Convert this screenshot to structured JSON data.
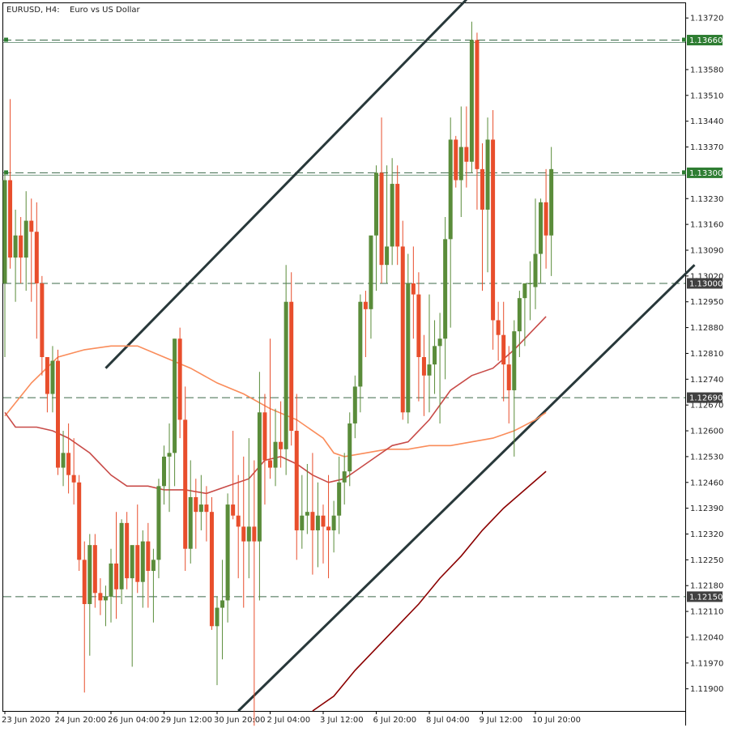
{
  "header": {
    "symbol_timeframe": "EURUSD, H4:",
    "description": "Euro vs US Dollar"
  },
  "chart_data": {
    "type": "candlestick",
    "symbol": "EURUSD",
    "timeframe": "H4",
    "title": "Euro vs US Dollar",
    "ylim": [
      1.1184,
      1.1376
    ],
    "y_ticks": [
      1.119,
      1.1197,
      1.1204,
      1.1211,
      1.1218,
      1.1225,
      1.1232,
      1.1239,
      1.1246,
      1.1253,
      1.126,
      1.1267,
      1.1274,
      1.1281,
      1.1288,
      1.1295,
      1.1302,
      1.1309,
      1.1316,
      1.1323,
      1.1337,
      1.1344,
      1.1351,
      1.1358,
      1.1372
    ],
    "y_tick_labels": [
      "1.11900",
      "1.11970",
      "1.12040",
      "1.12110",
      "1.12180",
      "1.12250",
      "1.12320",
      "1.12390",
      "1.12460",
      "1.12530",
      "1.12600",
      "1.12670",
      "1.12740",
      "1.12810",
      "1.12880",
      "1.12950",
      "1.13020",
      "1.13090",
      "1.13160",
      "1.13230",
      "1.13370",
      "1.13440",
      "1.13510",
      "1.13580",
      "1.13720"
    ],
    "x_tick_labels": [
      {
        "bar": 0,
        "label": "23 Jun 2020"
      },
      {
        "bar": 10,
        "label": "24 Jun 20:00"
      },
      {
        "bar": 20,
        "label": "26 Jun 04:00"
      },
      {
        "bar": 30,
        "label": "29 Jun 12:00"
      },
      {
        "bar": 40,
        "label": "30 Jun 20:00"
      },
      {
        "bar": 50,
        "label": "2 Jul 04:00"
      },
      {
        "bar": 60,
        "label": "3 Jul 12:00"
      },
      {
        "bar": 70,
        "label": "6 Jul 20:00"
      },
      {
        "bar": 80,
        "label": "8 Jul 04:00"
      },
      {
        "bar": 90,
        "label": "9 Jul 12:00"
      },
      {
        "bar": 100,
        "label": "10 Jul 20:00"
      }
    ],
    "levels": [
      {
        "value": 1.1366,
        "label": "1.13660",
        "color": "#2e7d32"
      },
      {
        "value": 1.133,
        "label": "1.13300",
        "color": "#2e7d32"
      },
      {
        "value": 1.13,
        "label": "1.13000",
        "color": "#404040"
      },
      {
        "value": 1.1269,
        "label": "1.12690",
        "color": "#404040"
      },
      {
        "value": 1.1215,
        "label": "1.12150",
        "color": "#404040"
      }
    ],
    "channel_lines": [
      {
        "x1": 19,
        "y1": 1.1277,
        "x2": 87,
        "y2": 1.1377
      },
      {
        "x1": 44,
        "y1": 1.1184,
        "x2": 130,
        "y2": 1.1305
      }
    ],
    "candles": [
      [
        1.13,
        1.133,
        1.128,
        1.1328
      ],
      [
        1.1328,
        1.135,
        1.1304,
        1.1307
      ],
      [
        1.1307,
        1.132,
        1.1295,
        1.1313
      ],
      [
        1.1313,
        1.1318,
        1.13,
        1.1307
      ],
      [
        1.1307,
        1.1325,
        1.1298,
        1.1317
      ],
      [
        1.1317,
        1.1323,
        1.1295,
        1.1314
      ],
      [
        1.1314,
        1.1322,
        1.1285,
        1.13
      ],
      [
        1.13,
        1.1302,
        1.1275,
        1.128
      ],
      [
        1.128,
        1.128,
        1.1265,
        1.127
      ],
      [
        1.127,
        1.1283,
        1.1265,
        1.1279
      ],
      [
        1.1279,
        1.1282,
        1.1248,
        1.125
      ],
      [
        1.125,
        1.126,
        1.1245,
        1.1254
      ],
      [
        1.1254,
        1.1262,
        1.1243,
        1.1248
      ],
      [
        1.1248,
        1.1258,
        1.124,
        1.1246
      ],
      [
        1.1246,
        1.1248,
        1.1222,
        1.1225
      ],
      [
        1.1225,
        1.123,
        1.1189,
        1.1213
      ],
      [
        1.1213,
        1.1232,
        1.1199,
        1.1229
      ],
      [
        1.1229,
        1.1232,
        1.1212,
        1.1216
      ],
      [
        1.1216,
        1.122,
        1.121,
        1.1214
      ],
      [
        1.1214,
        1.1218,
        1.1207,
        1.1215
      ],
      [
        1.1215,
        1.1228,
        1.1208,
        1.1224
      ],
      [
        1.1224,
        1.1238,
        1.1209,
        1.1217
      ],
      [
        1.1217,
        1.1236,
        1.1213,
        1.1235
      ],
      [
        1.1235,
        1.1238,
        1.1217,
        1.122
      ],
      [
        1.122,
        1.1228,
        1.1196,
        1.1229
      ],
      [
        1.1229,
        1.124,
        1.1216,
        1.1219
      ],
      [
        1.1219,
        1.1233,
        1.1212,
        1.123
      ],
      [
        1.123,
        1.1235,
        1.1212,
        1.1222
      ],
      [
        1.1222,
        1.1228,
        1.1208,
        1.1225
      ],
      [
        1.1225,
        1.1247,
        1.122,
        1.1245
      ],
      [
        1.1245,
        1.1256,
        1.124,
        1.1253
      ],
      [
        1.1253,
        1.1262,
        1.1238,
        1.1254
      ],
      [
        1.1254,
        1.1285,
        1.1245,
        1.1285
      ],
      [
        1.1285,
        1.1288,
        1.1258,
        1.1263
      ],
      [
        1.1263,
        1.1272,
        1.1222,
        1.1228
      ],
      [
        1.1228,
        1.1252,
        1.1224,
        1.1242
      ],
      [
        1.1242,
        1.1247,
        1.1228,
        1.1238
      ],
      [
        1.1238,
        1.1248,
        1.1233,
        1.124
      ],
      [
        1.124,
        1.1245,
        1.123,
        1.1238
      ],
      [
        1.1238,
        1.1242,
        1.1206,
        1.1207
      ],
      [
        1.1207,
        1.1215,
        1.1191,
        1.1212
      ],
      [
        1.1212,
        1.1225,
        1.1198,
        1.1214
      ],
      [
        1.1214,
        1.1243,
        1.1208,
        1.124
      ],
      [
        1.124,
        1.126,
        1.1236,
        1.1237
      ],
      [
        1.1237,
        1.1248,
        1.122,
        1.1234
      ],
      [
        1.1234,
        1.1253,
        1.1212,
        1.123
      ],
      [
        1.123,
        1.1258,
        1.122,
        1.1234
      ],
      [
        1.1234,
        1.1252,
        1.118,
        1.123
      ],
      [
        1.123,
        1.1276,
        1.1214,
        1.1265
      ],
      [
        1.1265,
        1.127,
        1.124,
        1.1252
      ],
      [
        1.1252,
        1.1285,
        1.1247,
        1.125
      ],
      [
        1.125,
        1.1266,
        1.1245,
        1.1257
      ],
      [
        1.1257,
        1.1268,
        1.125,
        1.1255
      ],
      [
        1.1255,
        1.1305,
        1.1248,
        1.1295
      ],
      [
        1.1295,
        1.1303,
        1.1256,
        1.126
      ],
      [
        1.126,
        1.127,
        1.1225,
        1.1233
      ],
      [
        1.1233,
        1.1248,
        1.1228,
        1.1237
      ],
      [
        1.1237,
        1.1251,
        1.1232,
        1.1238
      ],
      [
        1.1238,
        1.1254,
        1.1221,
        1.1233
      ],
      [
        1.1233,
        1.1246,
        1.1223,
        1.1237
      ],
      [
        1.1237,
        1.124,
        1.1224,
        1.1234
      ],
      [
        1.1234,
        1.1248,
        1.122,
        1.1233
      ],
      [
        1.1233,
        1.1241,
        1.1227,
        1.1237
      ],
      [
        1.1237,
        1.1253,
        1.1232,
        1.1246
      ],
      [
        1.1246,
        1.1254,
        1.124,
        1.1249
      ],
      [
        1.1249,
        1.1265,
        1.1245,
        1.1262
      ],
      [
        1.1262,
        1.1275,
        1.1258,
        1.1272
      ],
      [
        1.1272,
        1.1297,
        1.1265,
        1.1295
      ],
      [
        1.1295,
        1.1298,
        1.128,
        1.1293
      ],
      [
        1.1293,
        1.1312,
        1.1285,
        1.1313
      ],
      [
        1.1313,
        1.1332,
        1.1298,
        1.133
      ],
      [
        1.133,
        1.1345,
        1.13,
        1.1305
      ],
      [
        1.1305,
        1.1332,
        1.13,
        1.131
      ],
      [
        1.131,
        1.1334,
        1.1305,
        1.1327
      ],
      [
        1.1327,
        1.1332,
        1.1305,
        1.131
      ],
      [
        1.131,
        1.1317,
        1.1263,
        1.1265
      ],
      [
        1.1265,
        1.1308,
        1.1262,
        1.13
      ],
      [
        1.13,
        1.131,
        1.1285,
        1.1297
      ],
      [
        1.1297,
        1.1303,
        1.1268,
        1.128
      ],
      [
        1.128,
        1.1286,
        1.1264,
        1.1275
      ],
      [
        1.1275,
        1.1297,
        1.1265,
        1.1278
      ],
      [
        1.1278,
        1.129,
        1.127,
        1.1283
      ],
      [
        1.1283,
        1.1292,
        1.1262,
        1.1285
      ],
      [
        1.1285,
        1.1318,
        1.1274,
        1.1312
      ],
      [
        1.1312,
        1.1345,
        1.1288,
        1.1339
      ],
      [
        1.1339,
        1.134,
        1.1326,
        1.1328
      ],
      [
        1.1328,
        1.1348,
        1.1318,
        1.1337
      ],
      [
        1.1337,
        1.1348,
        1.1326,
        1.1333
      ],
      [
        1.1333,
        1.1371,
        1.133,
        1.1366
      ],
      [
        1.1366,
        1.1368,
        1.132,
        1.1331
      ],
      [
        1.1331,
        1.1338,
        1.1298,
        1.132
      ],
      [
        1.132,
        1.1345,
        1.1303,
        1.1339
      ],
      [
        1.1339,
        1.1347,
        1.1282,
        1.129
      ],
      [
        1.129,
        1.1295,
        1.1279,
        1.1286
      ],
      [
        1.1286,
        1.1295,
        1.1268,
        1.1278
      ],
      [
        1.1278,
        1.1283,
        1.1262,
        1.1271
      ],
      [
        1.1271,
        1.129,
        1.1253,
        1.1287
      ],
      [
        1.1287,
        1.1298,
        1.128,
        1.1296
      ],
      [
        1.1296,
        1.13,
        1.1283,
        1.13
      ],
      [
        1.13,
        1.1306,
        1.129,
        1.13
      ],
      [
        1.1299,
        1.1323,
        1.1293,
        1.1308
      ],
      [
        1.1308,
        1.1323,
        1.13,
        1.1322
      ],
      [
        1.1322,
        1.1331,
        1.1304,
        1.1313
      ],
      [
        1.1313,
        1.1337,
        1.1302,
        1.1331
      ]
    ],
    "moving_averages": [
      {
        "color": "#fa8c5a",
        "points": [
          [
            0,
            1.1264
          ],
          [
            5,
            1.1273
          ],
          [
            10,
            1.128
          ],
          [
            15,
            1.1282
          ],
          [
            20,
            1.1283
          ],
          [
            25,
            1.1283
          ],
          [
            30,
            1.128
          ],
          [
            35,
            1.1277
          ],
          [
            40,
            1.1273
          ],
          [
            45,
            1.127
          ],
          [
            50,
            1.1266
          ],
          [
            55,
            1.1263
          ],
          [
            60,
            1.1258
          ],
          [
            62,
            1.1254
          ],
          [
            64,
            1.1253
          ],
          [
            68,
            1.1254
          ],
          [
            72,
            1.1255
          ],
          [
            76,
            1.1255
          ],
          [
            80,
            1.1256
          ],
          [
            84,
            1.1256
          ],
          [
            88,
            1.1257
          ],
          [
            92,
            1.1258
          ],
          [
            96,
            1.126
          ],
          [
            100,
            1.1263
          ],
          [
            102,
            1.1265
          ]
        ]
      },
      {
        "color": "#c84b48",
        "points": [
          [
            0,
            1.1265
          ],
          [
            2,
            1.1261
          ],
          [
            6,
            1.1261
          ],
          [
            9,
            1.126
          ],
          [
            12,
            1.1258
          ],
          [
            16,
            1.1254
          ],
          [
            20,
            1.1248
          ],
          [
            23,
            1.1245
          ],
          [
            27,
            1.1245
          ],
          [
            30,
            1.1244
          ],
          [
            34,
            1.1244
          ],
          [
            38,
            1.1243
          ],
          [
            42,
            1.1245
          ],
          [
            46,
            1.1247
          ],
          [
            49,
            1.1252
          ],
          [
            52,
            1.1253
          ],
          [
            55,
            1.1251
          ],
          [
            58,
            1.1248
          ],
          [
            61,
            1.1246
          ],
          [
            64,
            1.1247
          ],
          [
            67,
            1.125
          ],
          [
            70,
            1.1253
          ],
          [
            73,
            1.1256
          ],
          [
            76,
            1.1257
          ],
          [
            80,
            1.1263
          ],
          [
            84,
            1.1271
          ],
          [
            88,
            1.1275
          ],
          [
            92,
            1.1277
          ],
          [
            96,
            1.1282
          ],
          [
            100,
            1.1288
          ],
          [
            102,
            1.1291
          ]
        ]
      },
      {
        "color": "#8b0000",
        "points": [
          [
            58,
            1.1184
          ],
          [
            62,
            1.1188
          ],
          [
            66,
            1.1195
          ],
          [
            70,
            1.1201
          ],
          [
            74,
            1.1207
          ],
          [
            78,
            1.1213
          ],
          [
            82,
            1.122
          ],
          [
            86,
            1.1226
          ],
          [
            90,
            1.1233
          ],
          [
            94,
            1.1239
          ],
          [
            98,
            1.1244
          ],
          [
            102,
            1.1249
          ]
        ]
      }
    ],
    "colors": {
      "bull": "#5a8c3a",
      "bear": "#e84e2c",
      "channel": "#28383a",
      "level_line": "#3c6a4a",
      "tag_green": "#2e7d32",
      "tag_dark": "#404040"
    },
    "grid": false
  }
}
